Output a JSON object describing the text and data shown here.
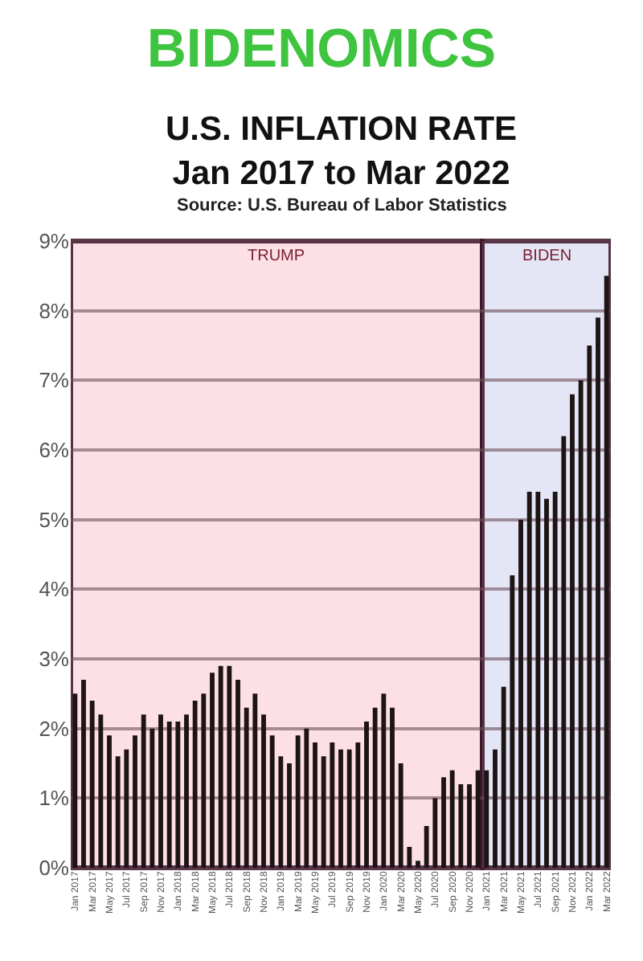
{
  "chart_data": {
    "type": "bar",
    "title": "BIDENOMICS",
    "subtitle": "U.S. INFLATION RATE\nJan 2017 to Mar 2022",
    "annotations": [
      "Source: U.S. Bureau of Labor Statistics"
    ],
    "categories": [
      "Jan 2017",
      null,
      "Mar 2017",
      null,
      "May 2017",
      null,
      "Jul 2017",
      null,
      "Sep 2017",
      null,
      "Nov 2017",
      null,
      "Jan 2018",
      null,
      "Mar 2018",
      null,
      "May 2018",
      null,
      "Jul 2018",
      null,
      "Sep 2018",
      null,
      "Nov 2018",
      null,
      "Jan 2019",
      null,
      "Mar 2019",
      null,
      "May 2019",
      null,
      "Jul 2019",
      null,
      "Sep 2019",
      null,
      "Nov 2019",
      null,
      "Jan 2020",
      null,
      "Mar 2020",
      null,
      "May 2020",
      null,
      "Jul 2020",
      null,
      "Sep 2020",
      null,
      "Nov 2020",
      null,
      "Jan 2021",
      null,
      "Mar 2021",
      null,
      "May 2021",
      null,
      "Jul 2021",
      null,
      "Sep 2021",
      null,
      "Nov 2021",
      null,
      "Jan 2022",
      null,
      "Mar 2022"
    ],
    "values": [
      2.5,
      2.7,
      2.4,
      2.2,
      1.9,
      1.6,
      1.7,
      1.9,
      2.2,
      2.0,
      2.2,
      2.1,
      2.1,
      2.2,
      2.4,
      2.5,
      2.8,
      2.9,
      2.9,
      2.7,
      2.3,
      2.5,
      2.2,
      1.9,
      1.6,
      1.5,
      1.9,
      2.0,
      1.8,
      1.6,
      1.8,
      1.7,
      1.7,
      1.8,
      2.1,
      2.3,
      2.5,
      2.3,
      1.5,
      0.3,
      0.1,
      0.6,
      1.0,
      1.3,
      1.4,
      1.2,
      1.2,
      1.4,
      1.4,
      1.7,
      2.6,
      4.2,
      5.0,
      5.4,
      5.4,
      5.3,
      5.4,
      6.2,
      6.8,
      7.0,
      7.5,
      7.9,
      8.5
    ],
    "color": "#1e1416",
    "ylim": [
      0,
      9
    ],
    "yticks": [
      {
        "value": 0,
        "label": "0%"
      },
      {
        "value": 1,
        "label": "1%"
      },
      {
        "value": 2,
        "label": "2%"
      },
      {
        "value": 3,
        "label": "3%"
      },
      {
        "value": 4,
        "label": "4%"
      },
      {
        "value": 5,
        "label": "5%"
      },
      {
        "value": 6,
        "label": "6%"
      },
      {
        "value": 7,
        "label": "7%"
      },
      {
        "value": 8,
        "label": "8%"
      },
      {
        "value": 9,
        "label": "9%"
      }
    ],
    "grid": "y",
    "bands": [
      {
        "axis": "x",
        "from": "Jan 2017",
        "to": "Jan 2021",
        "label": "TRUMP",
        "color": "#fde0e6"
      },
      {
        "axis": "x",
        "from": "Jan 2021",
        "to": "Mar 2022",
        "label": "BIDEN",
        "color": "#e4e6f6"
      }
    ]
  }
}
